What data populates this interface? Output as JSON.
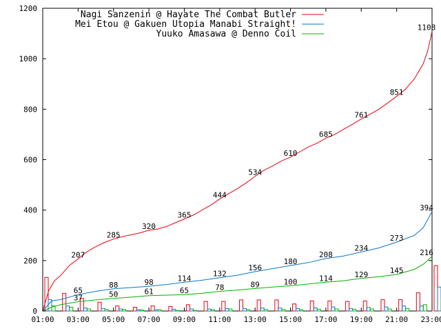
{
  "chart_data": {
    "type": "line",
    "title": "",
    "xlabel": "",
    "ylabel": "",
    "ylim": [
      0,
      1200
    ],
    "xlim": [
      "01:00",
      "23:00"
    ],
    "grid": false,
    "legend_position": "top-right",
    "y_ticks": [
      0,
      200,
      400,
      600,
      800,
      1000,
      1200
    ],
    "x_ticks": [
      "01:00",
      "03:00",
      "05:00",
      "07:00",
      "09:00",
      "11:00",
      "13:00",
      "15:00",
      "17:00",
      "19:00",
      "21:00",
      "23:00"
    ],
    "series": [
      {
        "name": "Nagi Sanzenin @ Hayate The Combat Butler",
        "color": "#e8000b",
        "points": [
          [
            "01:00",
            0
          ],
          [
            "01:10",
            40
          ],
          [
            "01:20",
            80
          ],
          [
            "01:40",
            120
          ],
          [
            "02:00",
            140
          ],
          [
            "02:30",
            180
          ],
          [
            "03:00",
            207
          ],
          [
            "03:30",
            235
          ],
          [
            "04:00",
            255
          ],
          [
            "04:30",
            272
          ],
          [
            "05:00",
            285
          ],
          [
            "05:30",
            295
          ],
          [
            "06:00",
            302
          ],
          [
            "06:30",
            310
          ],
          [
            "07:00",
            320
          ],
          [
            "07:30",
            325
          ],
          [
            "08:00",
            335
          ],
          [
            "08:30",
            350
          ],
          [
            "09:00",
            365
          ],
          [
            "09:30",
            380
          ],
          [
            "10:00",
            400
          ],
          [
            "10:30",
            420
          ],
          [
            "11:00",
            444
          ],
          [
            "11:30",
            465
          ],
          [
            "12:00",
            485
          ],
          [
            "12:30",
            508
          ],
          [
            "13:00",
            534
          ],
          [
            "13:30",
            558
          ],
          [
            "14:00",
            575
          ],
          [
            "14:30",
            595
          ],
          [
            "15:00",
            610
          ],
          [
            "15:30",
            630
          ],
          [
            "16:00",
            650
          ],
          [
            "16:30",
            665
          ],
          [
            "17:00",
            685
          ],
          [
            "17:30",
            700
          ],
          [
            "18:00",
            720
          ],
          [
            "18:30",
            740
          ],
          [
            "19:00",
            761
          ],
          [
            "19:30",
            780
          ],
          [
            "20:00",
            800
          ],
          [
            "20:30",
            825
          ],
          [
            "21:00",
            851
          ],
          [
            "21:30",
            880
          ],
          [
            "22:00",
            920
          ],
          [
            "22:30",
            980
          ],
          [
            "22:45",
            1030
          ],
          [
            "23:00",
            1108
          ]
        ],
        "labels": [
          [
            "03:00",
            207
          ],
          [
            "05:00",
            285
          ],
          [
            "07:00",
            320
          ],
          [
            "09:00",
            365
          ],
          [
            "11:00",
            444
          ],
          [
            "13:00",
            534
          ],
          [
            "15:00",
            610
          ],
          [
            "17:00",
            685
          ],
          [
            "19:00",
            761
          ],
          [
            "21:00",
            851
          ],
          [
            "23:00",
            1108
          ]
        ]
      },
      {
        "name": "Mei Etou @ Gakuen Utopia Manabi Straight!",
        "color": "#0a76d0",
        "points": [
          [
            "01:00",
            0
          ],
          [
            "01:30",
            40
          ],
          [
            "02:00",
            45
          ],
          [
            "03:00",
            65
          ],
          [
            "04:00",
            78
          ],
          [
            "05:00",
            88
          ],
          [
            "06:00",
            93
          ],
          [
            "07:00",
            98
          ],
          [
            "08:00",
            105
          ],
          [
            "09:00",
            114
          ],
          [
            "10:00",
            122
          ],
          [
            "11:00",
            132
          ],
          [
            "12:00",
            142
          ],
          [
            "13:00",
            156
          ],
          [
            "14:00",
            168
          ],
          [
            "15:00",
            180
          ],
          [
            "16:00",
            192
          ],
          [
            "17:00",
            208
          ],
          [
            "18:00",
            218
          ],
          [
            "19:00",
            234
          ],
          [
            "20:00",
            250
          ],
          [
            "21:00",
            273
          ],
          [
            "22:00",
            300
          ],
          [
            "22:30",
            330
          ],
          [
            "23:00",
            394
          ]
        ],
        "labels": [
          [
            "03:00",
            65
          ],
          [
            "05:00",
            88
          ],
          [
            "07:00",
            98
          ],
          [
            "09:00",
            114
          ],
          [
            "11:00",
            132
          ],
          [
            "13:00",
            156
          ],
          [
            "15:00",
            180
          ],
          [
            "17:00",
            208
          ],
          [
            "19:00",
            234
          ],
          [
            "21:00",
            273
          ],
          [
            "23:00",
            394
          ]
        ]
      },
      {
        "name": "Yuuko Amasawa @ Denno Coil",
        "color": "#00b100",
        "points": [
          [
            "01:00",
            0
          ],
          [
            "01:30",
            15
          ],
          [
            "02:00",
            25
          ],
          [
            "03:00",
            37
          ],
          [
            "04:00",
            44
          ],
          [
            "05:00",
            50
          ],
          [
            "06:00",
            55
          ],
          [
            "07:00",
            61
          ],
          [
            "08:00",
            63
          ],
          [
            "09:00",
            65
          ],
          [
            "10:00",
            70
          ],
          [
            "11:00",
            78
          ],
          [
            "12:00",
            83
          ],
          [
            "13:00",
            89
          ],
          [
            "14:00",
            95
          ],
          [
            "15:00",
            100
          ],
          [
            "16:00",
            107
          ],
          [
            "17:00",
            114
          ],
          [
            "18:00",
            120
          ],
          [
            "19:00",
            129
          ],
          [
            "20:00",
            136
          ],
          [
            "21:00",
            145
          ],
          [
            "22:00",
            165
          ],
          [
            "22:30",
            185
          ],
          [
            "23:00",
            216
          ]
        ],
        "labels": [
          [
            "03:00",
            37
          ],
          [
            "05:00",
            50
          ],
          [
            "07:00",
            61
          ],
          [
            "09:00",
            65
          ],
          [
            "11:00",
            78
          ],
          [
            "13:00",
            89
          ],
          [
            "15:00",
            100
          ],
          [
            "17:00",
            114
          ],
          [
            "19:00",
            129
          ],
          [
            "21:00",
            145
          ],
          [
            "23:00",
            216
          ]
        ]
      }
    ],
    "bars": {
      "hours": [
        "01:00",
        "02:00",
        "03:00",
        "04:00",
        "05:00",
        "06:00",
        "07:00",
        "08:00",
        "09:00",
        "10:00",
        "11:00",
        "12:00",
        "13:00",
        "14:00",
        "15:00",
        "16:00",
        "17:00",
        "18:00",
        "19:00",
        "20:00",
        "21:00",
        "22:00",
        "23:00"
      ],
      "series": [
        {
          "name": "Nagi Sanzenin @ Hayate The Combat Butler",
          "color": "#e8000b",
          "values": [
            133,
            70,
            50,
            35,
            20,
            15,
            20,
            18,
            25,
            38,
            38,
            44,
            44,
            44,
            28,
            40,
            40,
            38,
            40,
            45,
            45,
            72,
            180
          ]
        },
        {
          "name": "Mei Etou @ Gakuen Utopia Manabi Straight!",
          "color": "#0a76d0",
          "values": [
            45,
            20,
            12,
            10,
            8,
            5,
            5,
            7,
            8,
            8,
            10,
            10,
            12,
            12,
            10,
            12,
            16,
            10,
            14,
            16,
            20,
            20,
            95
          ]
        },
        {
          "name": "Yuuko Amasawa @ Denno Coil",
          "color": "#00b100",
          "values": [
            20,
            15,
            8,
            6,
            6,
            4,
            5,
            2,
            2,
            5,
            8,
            5,
            6,
            6,
            5,
            7,
            8,
            7,
            8,
            8,
            10,
            25,
            48
          ]
        }
      ]
    }
  }
}
